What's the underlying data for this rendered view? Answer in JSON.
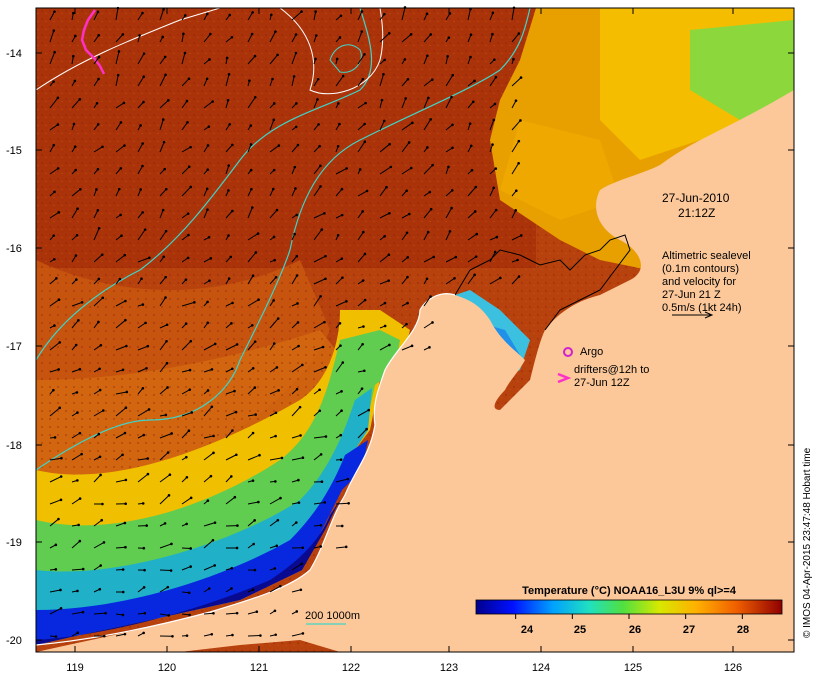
{
  "map": {
    "y_ticks": [
      "-14",
      "-15",
      "-16",
      "-17",
      "-18",
      "-19",
      "-20"
    ],
    "x_ticks": [
      "119",
      "120",
      "121",
      "122",
      "123",
      "124",
      "125",
      "126"
    ],
    "timestamp_date": "27-Jun-2010",
    "timestamp_time": "21:12Z",
    "altimetry_lines": [
      "Altimetric sealevel",
      "(0.1m contours)",
      "and velocity for",
      "27-Jun 21 Z",
      "0.5m/s (1kt 24h)"
    ],
    "argo_label": "Argo",
    "drifters_lines": [
      "drifters@12h to",
      "27-Jun 12Z"
    ],
    "isobath_label": "200  1000m",
    "colorbar_title": "Temperature (°C) NOAA16_L3U 9% ql>=4",
    "colorbar_ticks": [
      "24",
      "25",
      "26",
      "27",
      "28"
    ],
    "credit": "© IMOS 04-Apr-2015 23:47:48 Hobart time"
  },
  "colors": {
    "land": "#fcc89a",
    "warm": "#b33a0c",
    "isobath_200": "#40d4c8",
    "isobath_1000": "#ffffff",
    "argo": "#d020d0",
    "drifter": "#ff30c8"
  },
  "colorbar": {
    "min": 23.3,
    "max": 28.7
  }
}
